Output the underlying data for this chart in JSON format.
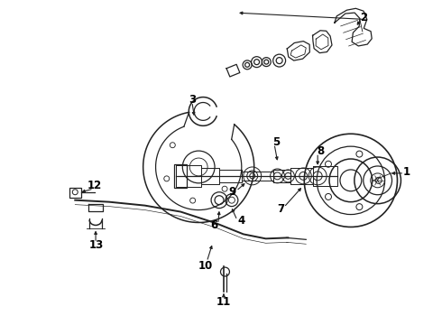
{
  "background_color": "#ffffff",
  "line_color": "#222222",
  "label_color": "#000000",
  "figsize": [
    4.9,
    3.6
  ],
  "dpi": 100
}
